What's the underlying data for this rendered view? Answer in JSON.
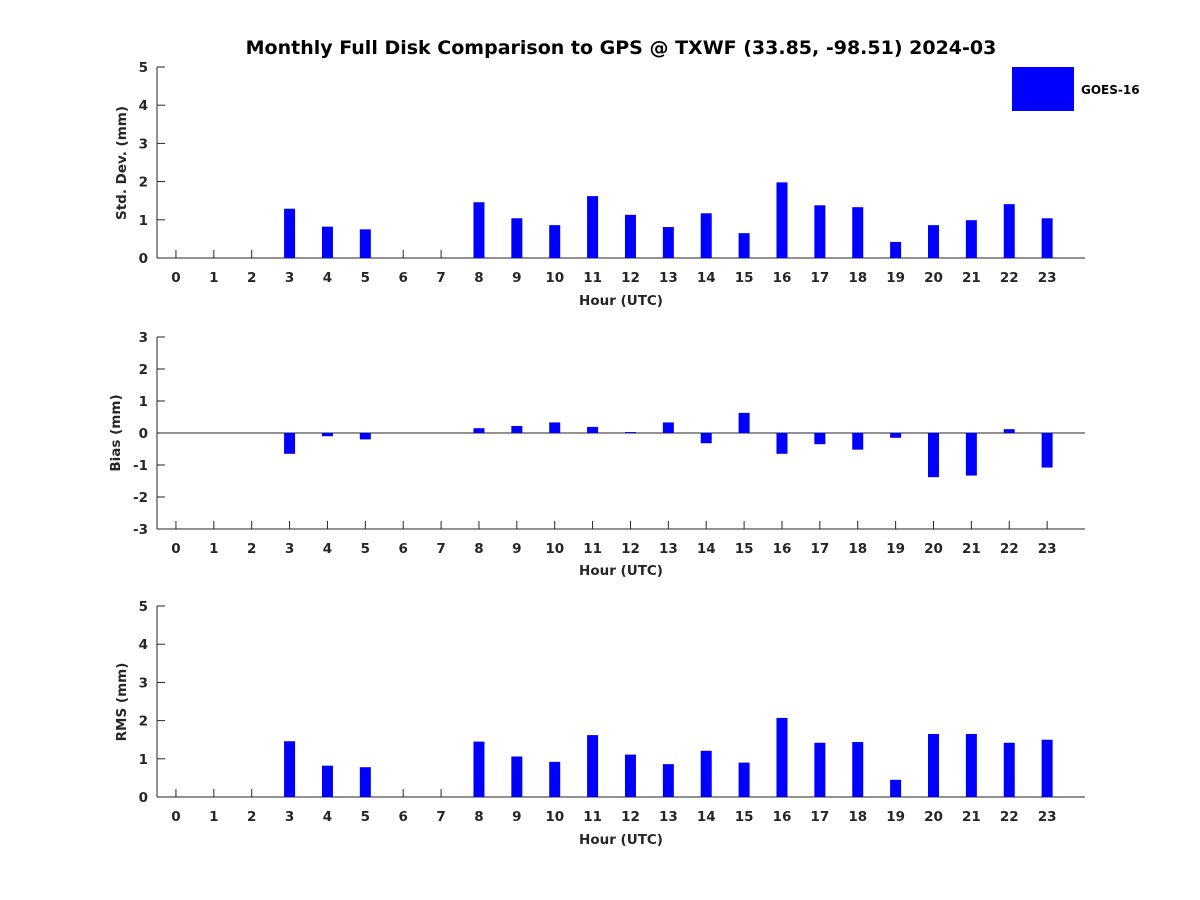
{
  "title": "Monthly Full Disk Comparison to GPS @ TXWF (33.85, -98.51) 2024-03",
  "legend": {
    "label": "GOES-16",
    "color": "#0000ff",
    "position": "top-right"
  },
  "chart_data": [
    {
      "type": "bar",
      "ylabel": "Std. Dev. (mm)",
      "xlabel": "Hour (UTC)",
      "ylim": [
        0,
        5
      ],
      "yticks": [
        0,
        1,
        2,
        3,
        4,
        5
      ],
      "categories": [
        "0",
        "1",
        "2",
        "3",
        "4",
        "5",
        "6",
        "7",
        "8",
        "9",
        "10",
        "11",
        "12",
        "13",
        "14",
        "15",
        "16",
        "17",
        "18",
        "19",
        "20",
        "21",
        "22",
        "23"
      ],
      "series": [
        {
          "name": "GOES-16",
          "values": [
            null,
            null,
            null,
            1.29,
            0.82,
            0.75,
            null,
            null,
            1.46,
            1.04,
            0.86,
            1.62,
            1.13,
            0.81,
            1.17,
            0.65,
            1.98,
            1.38,
            1.33,
            0.42,
            0.86,
            0.99,
            1.41,
            1.04
          ]
        }
      ]
    },
    {
      "type": "bar",
      "ylabel": "Bias (mm)",
      "xlabel": "Hour (UTC)",
      "ylim": [
        -3,
        3
      ],
      "yticks": [
        -3,
        -2,
        -1,
        0,
        1,
        2,
        3
      ],
      "categories": [
        "0",
        "1",
        "2",
        "3",
        "4",
        "5",
        "6",
        "7",
        "8",
        "9",
        "10",
        "11",
        "12",
        "13",
        "14",
        "15",
        "16",
        "17",
        "18",
        "19",
        "20",
        "21",
        "22",
        "23"
      ],
      "series": [
        {
          "name": "GOES-16",
          "values": [
            null,
            null,
            null,
            -0.65,
            -0.1,
            -0.2,
            null,
            null,
            0.15,
            0.22,
            0.33,
            0.19,
            0.03,
            0.33,
            -0.32,
            0.63,
            -0.65,
            -0.35,
            -0.52,
            -0.15,
            -1.38,
            -1.33,
            0.12,
            -1.08
          ]
        }
      ]
    },
    {
      "type": "bar",
      "ylabel": "RMS (mm)",
      "xlabel": "Hour (UTC)",
      "ylim": [
        0,
        5
      ],
      "yticks": [
        0,
        1,
        2,
        3,
        4,
        5
      ],
      "categories": [
        "0",
        "1",
        "2",
        "3",
        "4",
        "5",
        "6",
        "7",
        "8",
        "9",
        "10",
        "11",
        "12",
        "13",
        "14",
        "15",
        "16",
        "17",
        "18",
        "19",
        "20",
        "21",
        "22",
        "23"
      ],
      "series": [
        {
          "name": "GOES-16",
          "values": [
            null,
            null,
            null,
            1.46,
            0.82,
            0.78,
            null,
            null,
            1.45,
            1.06,
            0.92,
            1.62,
            1.11,
            0.86,
            1.21,
            0.9,
            2.07,
            1.42,
            1.44,
            0.45,
            1.65,
            1.65,
            1.42,
            1.5
          ]
        }
      ]
    }
  ]
}
